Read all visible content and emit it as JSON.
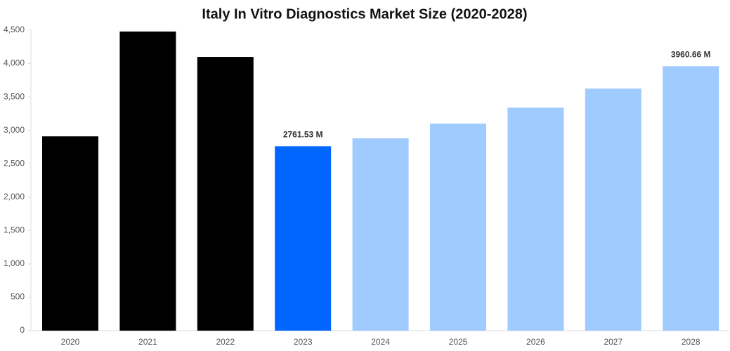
{
  "chart_data": {
    "type": "bar",
    "title": "Italy In Vitro Diagnostics Market Size (2020-2028)",
    "categories": [
      "2020",
      "2021",
      "2022",
      "2023",
      "2024",
      "2025",
      "2026",
      "2027",
      "2028"
    ],
    "values": [
      2910,
      4480,
      4100,
      2761.53,
      2880,
      3100,
      3340,
      3625,
      3960.66
    ],
    "value_labels": [
      null,
      null,
      null,
      "2761.53 M",
      null,
      null,
      null,
      null,
      "3960.66 M"
    ],
    "colors": [
      "#000000",
      "#000000",
      "#000000",
      "#0066ff",
      "#a0cbff",
      "#a0cbff",
      "#a0cbff",
      "#a0cbff",
      "#a0cbff"
    ],
    "ylim": [
      0,
      4500
    ],
    "yticks": [
      0,
      500,
      {
        "value": 1000,
        "label": "1,000"
      },
      {
        "value": 1500,
        "label": "1,500"
      },
      {
        "value": 2000,
        "label": "2,000"
      },
      {
        "value": 2500,
        "label": "2,500"
      },
      {
        "value": 3000,
        "label": "3,000"
      },
      {
        "value": 3500,
        "label": "3,500"
      },
      {
        "value": 4000,
        "label": "4,000"
      },
      {
        "value": 4500,
        "label": "4,500"
      }
    ],
    "grid": false
  }
}
